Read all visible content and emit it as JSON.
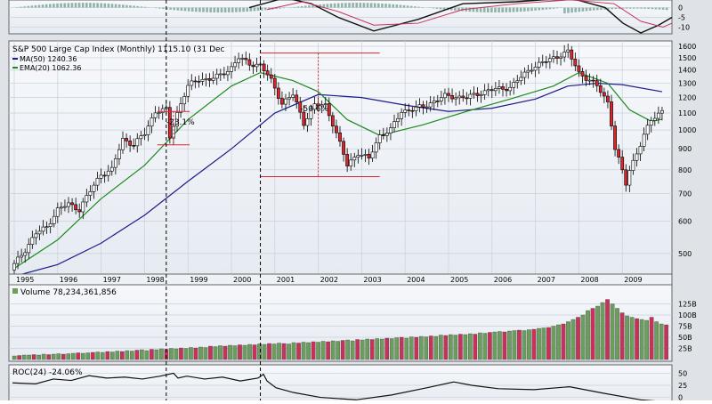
{
  "chart_data": [
    {
      "panel": "macd",
      "type": "line",
      "yticks": [
        "0",
        "-5",
        "-10"
      ],
      "ylim": [
        -13,
        3
      ]
    },
    {
      "panel": "price",
      "type": "candlestick",
      "title": "S&P 500 Large Cap Index (Monthly) 1115.10 (31 Dec",
      "legend": [
        {
          "label": "MA(50) 1240.36",
          "color": "#1c1c8c"
        },
        {
          "label": "EMA(20) 1062.36",
          "color": "#1e8a1e"
        }
      ],
      "y_scale": "log",
      "ylim": [
        450,
        1600
      ],
      "yticks": [
        "1600",
        "1500",
        "1400",
        "1300",
        "1200",
        "1100",
        "1000",
        "900",
        "800",
        "700",
        "600",
        "500"
      ],
      "xticks": [
        "1995",
        "1996",
        "1997",
        "1998",
        "1999",
        "2000",
        "2001",
        "2002",
        "2003",
        "2004",
        "2005",
        "2006",
        "2007",
        "2008",
        "2009"
      ],
      "annotations": [
        "-23.1%",
        "-50.6%"
      ],
      "series": [
        {
          "name": "close",
          "x": [
            "1995-01",
            "1995-04",
            "1995-07",
            "1995-10",
            "1996-01",
            "1996-04",
            "1996-07",
            "1996-10",
            "1997-01",
            "1997-04",
            "1997-07",
            "1997-10",
            "1998-01",
            "1998-04",
            "1998-07",
            "1998-08",
            "1998-10",
            "1999-01",
            "1999-04",
            "1999-07",
            "1999-10",
            "2000-01",
            "2000-03",
            "2000-06",
            "2000-09",
            "2000-12",
            "2001-03",
            "2001-06",
            "2001-09",
            "2001-12",
            "2002-03",
            "2002-06",
            "2002-09",
            "2002-12",
            "2003-03",
            "2003-06",
            "2003-09",
            "2003-12",
            "2004-06",
            "2004-12",
            "2005-06",
            "2005-12",
            "2006-06",
            "2006-12",
            "2007-06",
            "2007-10",
            "2008-01",
            "2008-06",
            "2008-09",
            "2008-11",
            "2009-02",
            "2009-03",
            "2009-06",
            "2009-09",
            "2009-12"
          ],
          "values": [
            470,
            510,
            560,
            580,
            640,
            660,
            640,
            710,
            780,
            800,
            950,
            920,
            980,
            1110,
            1120,
            960,
            1100,
            1280,
            1330,
            1330,
            1360,
            1420,
            1500,
            1450,
            1440,
            1320,
            1160,
            1220,
            1040,
            1150,
            1150,
            980,
            820,
            880,
            850,
            970,
            1000,
            1110,
            1140,
            1210,
            1200,
            1250,
            1270,
            1420,
            1500,
            1550,
            1380,
            1280,
            1170,
            900,
            740,
            800,
            920,
            1060,
            1115
          ]
        },
        {
          "name": "MA(50)",
          "x": [
            "1995-01",
            "1996-01",
            "1997-01",
            "1998-01",
            "1999-01",
            "2000-01",
            "2001-01",
            "2002-01",
            "2003-01",
            "2004-01",
            "2005-01",
            "2006-01",
            "2007-01",
            "2007-10",
            "2008-06",
            "2009-01",
            "2009-12"
          ],
          "values": [
            440,
            470,
            530,
            620,
            750,
            900,
            1100,
            1220,
            1200,
            1150,
            1110,
            1130,
            1190,
            1280,
            1300,
            1290,
            1240
          ]
        },
        {
          "name": "EMA(20)",
          "x": [
            "1995-01",
            "1996-01",
            "1997-01",
            "1998-01",
            "1999-01",
            "2000-01",
            "2000-09",
            "2001-06",
            "2002-01",
            "2002-09",
            "2003-06",
            "2004-06",
            "2005-06",
            "2006-06",
            "2007-06",
            "2008-01",
            "2008-09",
            "2009-03",
            "2009-09",
            "2009-12"
          ],
          "values": [
            460,
            540,
            680,
            820,
            1060,
            1280,
            1380,
            1320,
            1240,
            1060,
            970,
            1030,
            1110,
            1190,
            1280,
            1380,
            1300,
            1120,
            1050,
            1062
          ]
        }
      ]
    },
    {
      "panel": "volume",
      "type": "bar",
      "label": "Volume 78,234,361,856",
      "yticks": [
        "125B",
        "100B",
        "75B",
        "50B",
        "25B"
      ],
      "ylim": [
        0,
        140
      ],
      "values": [
        8,
        9,
        10,
        10,
        11,
        10,
        12,
        11,
        12,
        13,
        12,
        13,
        14,
        15,
        14,
        15,
        16,
        17,
        16,
        18,
        17,
        19,
        18,
        20,
        19,
        21,
        22,
        20,
        23,
        22,
        24,
        23,
        25,
        24,
        26,
        25,
        27,
        26,
        28,
        27,
        30,
        29,
        31,
        30,
        32,
        31,
        33,
        32,
        34,
        33,
        35,
        34,
        36,
        35,
        37,
        36,
        35,
        38,
        37,
        39,
        38,
        40,
        39,
        41,
        40,
        42,
        41,
        43,
        44,
        42,
        45,
        44,
        46,
        45,
        47,
        46,
        48,
        47,
        49,
        50,
        48,
        51,
        50,
        52,
        51,
        53,
        52,
        55,
        54,
        56,
        55,
        57,
        56,
        58,
        57,
        60,
        59,
        61,
        62,
        63,
        62,
        64,
        65,
        66,
        65,
        67,
        68,
        70,
        71,
        72,
        75,
        78,
        80,
        85,
        90,
        95,
        100,
        110,
        115,
        120,
        128,
        135,
        125,
        115,
        105,
        98,
        95,
        92,
        90,
        88,
        95,
        85,
        80,
        78
      ],
      "up_color": "#6b9e5c",
      "down_color": "#c8325a"
    },
    {
      "panel": "roc",
      "type": "line",
      "label": "ROC(24) -24.06%",
      "yticks": [
        "50",
        "25",
        "0"
      ],
      "ylim": [
        -10,
        60
      ]
    }
  ]
}
